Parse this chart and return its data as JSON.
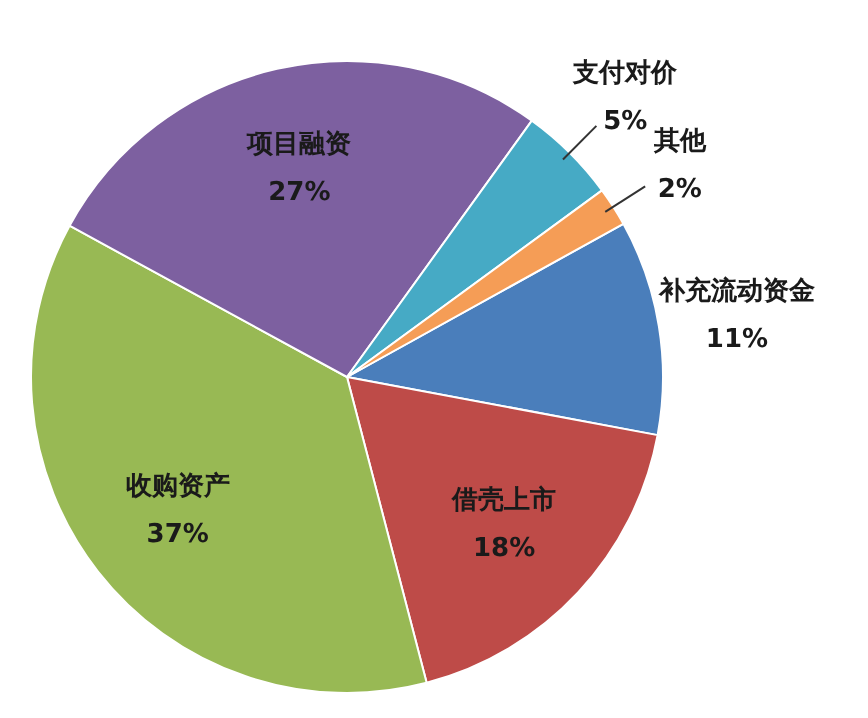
{
  "chart_data": {
    "type": "pie",
    "categories": [
      "补充流动资金",
      "借壳上市",
      "收购资产",
      "项目融资",
      "支付对价",
      "其他"
    ],
    "values": [
      11,
      18,
      37,
      27,
      5,
      2
    ],
    "value_labels": [
      "11%",
      "18%",
      "37%",
      "27%",
      "5%",
      "2%"
    ],
    "colors": [
      "#4a7ebb",
      "#be4b48",
      "#98b954",
      "#7d60a0",
      "#46aac5",
      "#f59d56"
    ],
    "legend": false
  }
}
